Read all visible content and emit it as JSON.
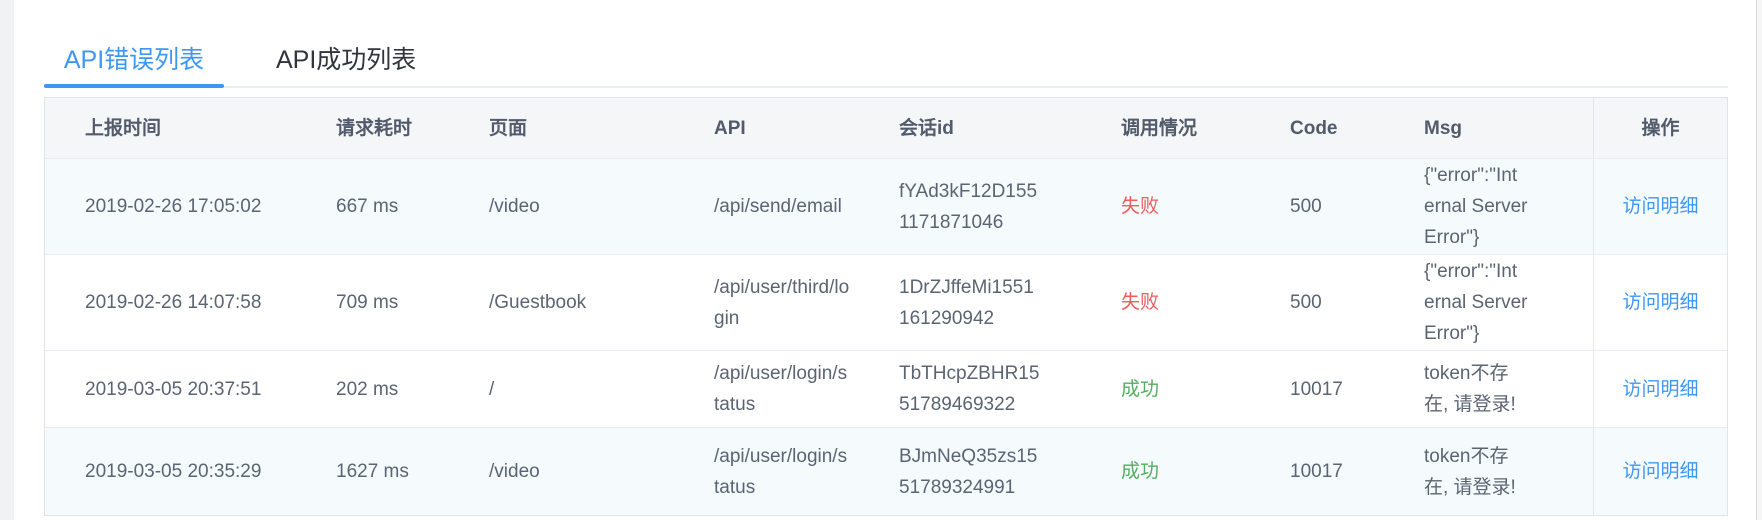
{
  "tabs": [
    {
      "label": "API错误列表",
      "active": true
    },
    {
      "label": "API成功列表",
      "active": false
    }
  ],
  "table": {
    "columns": [
      "上报时间",
      "请求耗时",
      "页面",
      "API",
      "会话id",
      "调用情况",
      "Code",
      "Msg",
      "操作"
    ],
    "action_label": "访问明细",
    "rows": [
      {
        "time": "2019-02-26 17:05:02",
        "duration": "667 ms",
        "page": "/video",
        "api": "/api/send/email",
        "session": "fYAd3kF12D155\n1171871046",
        "status": "失败",
        "status_type": "fail",
        "code": "500",
        "msg": "{\"error\":\"Int\nernal Server\nError\"}",
        "striped": true
      },
      {
        "time": "2019-02-26 14:07:58",
        "duration": "709 ms",
        "page": "/Guestbook",
        "api": "/api/user/third/lo\ngin",
        "session": "1DrZJffeMi1551\n161290942",
        "status": "失败",
        "status_type": "fail",
        "code": "500",
        "msg": "{\"error\":\"Int\nernal Server\nError\"}",
        "striped": false
      },
      {
        "time": "2019-03-05 20:37:51",
        "duration": "202 ms",
        "page": "/",
        "api": "/api/user/login/s\ntatus",
        "session": "TbTHcpZBHR15\n51789469322",
        "status": "成功",
        "status_type": "success",
        "code": "10017",
        "msg": "token不存\n在, 请登录!",
        "striped": false
      },
      {
        "time": "2019-03-05 20:35:29",
        "duration": "1627 ms",
        "page": "/video",
        "api": "/api/user/login/s\ntatus",
        "session": "BJmNeQ35zs15\n51789324991",
        "status": "成功",
        "status_type": "success",
        "code": "10017",
        "msg": "token不存\n在, 请登录!",
        "striped": true
      }
    ]
  },
  "colors": {
    "accent": "#3f97f4",
    "fail": "#ee5b5b",
    "success": "#53af5f",
    "stripe": "#f5fafd",
    "header_bg": "#f5f6f8"
  }
}
